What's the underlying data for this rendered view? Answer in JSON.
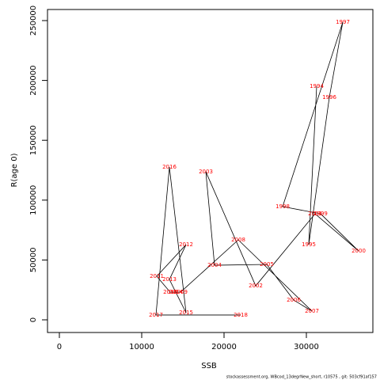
{
  "chart_data": {
    "type": "line",
    "x_label": "SSB",
    "y_label": "R(age 0)",
    "footer": "stockassessment.org, WBcod_13degrNew_short, r10575 , git: 503cf91af157",
    "labels": [
      "1994",
      "1995",
      "1996",
      "1997",
      "1998",
      "1999",
      "2000",
      "2001",
      "2002",
      "2003",
      "2004",
      "2005",
      "2006",
      "2007",
      "2008",
      "2009",
      "2010",
      "2011",
      "2012",
      "2013",
      "2014",
      "2015",
      "2016",
      "2017",
      "2018"
    ],
    "x": [
      31250,
      30288,
      32788,
      34423,
      27115,
      31730,
      36346,
      31058,
      23846,
      17788,
      18846,
      25192,
      28462,
      30673,
      21731,
      14712,
      13462,
      11827,
      15385,
      13365,
      14135,
      15385,
      13365,
      11731,
      22019
    ],
    "values": [
      195000,
      62800,
      185800,
      248700,
      94600,
      88600,
      57500,
      88600,
      28400,
      123700,
      45600,
      46300,
      16500,
      7300,
      66800,
      23100,
      23100,
      36400,
      62800,
      33700,
      23100,
      5950,
      127600,
      4000,
      4000
    ],
    "color": "#000000",
    "label_color": "#ff0000",
    "xlim": [
      -1442,
      38077
    ],
    "ylim": [
      -10582,
      259259
    ],
    "xticks": [
      0,
      10000,
      20000,
      30000
    ],
    "yticks": [
      0,
      50000,
      100000,
      150000,
      200000,
      250000
    ]
  }
}
